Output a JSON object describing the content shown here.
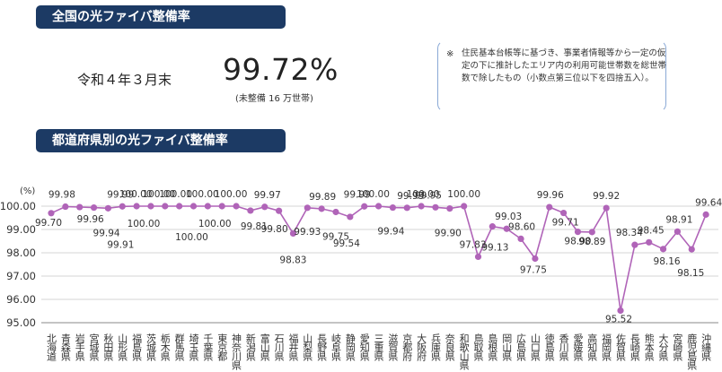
{
  "header": {
    "title": "全国の光ファイバ整備率",
    "date": "令和４年３月末",
    "national_rate": "99.72%",
    "national_sub": "(未整備 16 万世帯)"
  },
  "note": {
    "mark": "※",
    "text": "住民基本台帳等に基づき、事業者情報等から一定の仮定の下に推計したエリア内の利用可能世帯数を総世帯数で除したもの（小数点第三位以下を四捨五入）。"
  },
  "section2": {
    "title": "都道府県別の光ファイバ整備率"
  },
  "chart_data": {
    "type": "line",
    "ylabel": "(%)",
    "ylim": [
      95.0,
      100.0
    ],
    "yticks": [
      "95.00",
      "96.00",
      "97.00",
      "98.00",
      "99.00",
      "100.00"
    ],
    "color": "#b064b8",
    "categories": [
      "北海道",
      "青森県",
      "岩手県",
      "宮城県",
      "秋田県",
      "山形県",
      "福島県",
      "茨城県",
      "栃木県",
      "群馬県",
      "埼玉県",
      "千葉県",
      "東京都",
      "神奈川県",
      "新潟県",
      "富山県",
      "石川県",
      "福井県",
      "山梨県",
      "長野県",
      "岐阜県",
      "静岡県",
      "愛知県",
      "三重県",
      "滋賀県",
      "京都府",
      "大阪府",
      "兵庫県",
      "奈良県",
      "和歌山県",
      "鳥取県",
      "島根県",
      "岡山県",
      "広島県",
      "山口県",
      "徳島県",
      "香川県",
      "愛媛県",
      "高知県",
      "福岡県",
      "佐賀県",
      "長崎県",
      "熊本県",
      "大分県",
      "宮崎県",
      "鹿児島県",
      "沖縄県"
    ],
    "values": [
      99.7,
      99.98,
      99.96,
      99.94,
      99.91,
      99.99,
      100.0,
      100.0,
      100.0,
      100.0,
      100.0,
      100.0,
      100.0,
      100.0,
      99.81,
      99.97,
      99.8,
      98.83,
      99.93,
      99.89,
      99.75,
      99.54,
      99.99,
      100.0,
      99.94,
      99.93,
      100.0,
      99.95,
      99.9,
      100.0,
      97.83,
      99.13,
      99.03,
      98.6,
      97.75,
      99.96,
      99.71,
      98.9,
      98.89,
      99.92,
      95.52,
      98.34,
      98.45,
      98.16,
      98.91,
      98.15,
      99.64
    ],
    "data_labels": [
      "99.70",
      "99.98",
      "99.96",
      "99.94",
      "99.91",
      "99.99",
      "100.00",
      "100.00",
      "100.00",
      "100.00",
      "100.00",
      "100.00",
      "100.00",
      "100.00",
      "99.81",
      "99.97",
      "99.80",
      "98.83",
      "99.93",
      "99.89",
      "99.75",
      "99.54",
      "99.99",
      "100.00",
      "99.94",
      "99.93",
      "100.00",
      "99.95",
      "99.90",
      "100.00",
      "97.83",
      "99.13",
      "99.03",
      "98.60",
      "97.75",
      "99.96",
      "99.71",
      "98.90",
      "98.89",
      "99.92",
      "95.52",
      "98.34",
      "98.45",
      "98.16",
      "98.91",
      "98.15",
      "99.64"
    ]
  }
}
